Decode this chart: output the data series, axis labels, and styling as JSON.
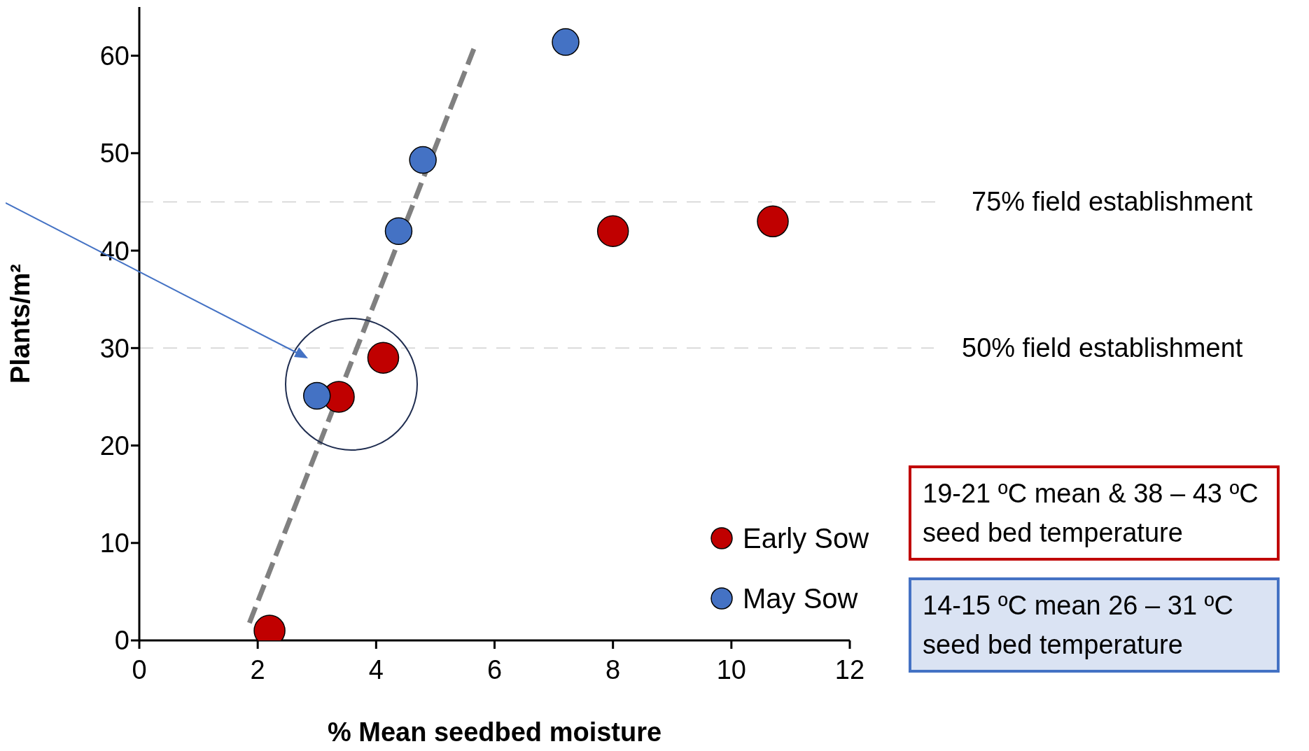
{
  "chart_data": {
    "type": "scatter",
    "xlabel": "% Mean seedbed moisture",
    "ylabel": "Plants/m²",
    "xlim": [
      0,
      12
    ],
    "xticks": [
      0,
      2,
      4,
      6,
      8,
      10,
      12
    ],
    "ylim": [
      0,
      65
    ],
    "yticks": [
      0,
      10,
      20,
      30,
      40,
      50,
      60
    ],
    "grid": false,
    "legend": "bottom right",
    "marker": "circle",
    "series": [
      {
        "name": "Early Sow",
        "color": "#c00000",
        "x": [
          2.2,
          3.37,
          4.12,
          8.0,
          10.7
        ],
        "values": [
          1,
          25,
          29,
          42,
          43
        ]
      },
      {
        "name": "May Sow",
        "color": "#4472c4",
        "x": [
          3.0,
          4.38,
          4.79,
          7.2
        ],
        "values": [
          25.1,
          42,
          49.3,
          61.4
        ]
      },
      {
        "type": "line",
        "color": "#808080",
        "line_style": "dashed",
        "marker": "none",
        "x": [
          1.86,
          5.65
        ],
        "values": [
          1.8,
          60.7
        ]
      }
    ],
    "ref_lines": [
      {
        "axis": "y",
        "value": 45,
        "label": "75% field establishment",
        "color": "#d0d0d0",
        "line_style": "dashed"
      },
      {
        "axis": "y",
        "value": 30,
        "label": "50% field establishment",
        "color": "#d0d0d0",
        "line_style": "dashed"
      }
    ],
    "annotations": [
      "19-21 ºC mean & 38 – 43 ºC",
      "seed bed temperature",
      "14-15 ºC mean 26 – 31 ºC",
      "seed bed temperature"
    ]
  }
}
